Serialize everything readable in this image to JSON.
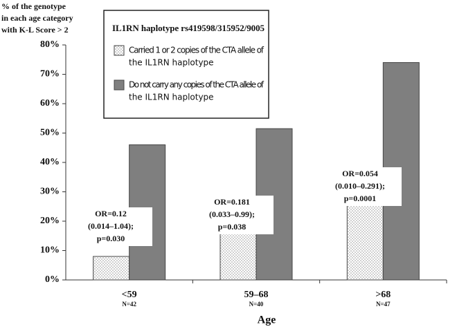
{
  "chart_data": {
    "type": "bar",
    "y_title": [
      "% of the genotype",
      "in each age category",
      "with K-L Score > 2"
    ],
    "x_title": "Age",
    "legend_title": "IL1RN haplotype rs419598/315952/9005",
    "categories": [
      "<59",
      "59–68",
      ">68"
    ],
    "category_notes": [
      "N=42",
      "N=40",
      "N=47"
    ],
    "series": [
      {
        "name": [
          "Carried 1 or 2 copies of the CTA allele of",
          "the IL1RN haplotype"
        ],
        "color": "#e6e6e6",
        "values": [
          8,
          17,
          27
        ]
      },
      {
        "name": [
          "Do not carry any copies of the CTA allele of",
          "the IL1RN haplotype"
        ],
        "color": "#7f7f7f",
        "values": [
          46,
          51.5,
          74
        ]
      }
    ],
    "annotations": [
      [
        "OR=0.12",
        "(0.014–1.04);",
        "p=0.030"
      ],
      [
        "OR=0.181",
        "(0.033–0.99);",
        "p=0.038"
      ],
      [
        "OR=0.054",
        "(0.010–0.291);",
        "p=0.0001"
      ]
    ],
    "ylim": [
      0,
      80
    ],
    "yticks": [
      {
        "value": 0,
        "label": "0%"
      },
      {
        "value": 10,
        "label": "10%"
      },
      {
        "value": 20,
        "label": "20%"
      },
      {
        "value": 30,
        "label": "30%"
      },
      {
        "value": 40,
        "label": "40%"
      },
      {
        "value": 50,
        "label": "50%"
      },
      {
        "value": 60,
        "label": "60%"
      },
      {
        "value": 70,
        "label": "70%"
      },
      {
        "value": 80,
        "label": "80%"
      }
    ],
    "grid": false
  }
}
